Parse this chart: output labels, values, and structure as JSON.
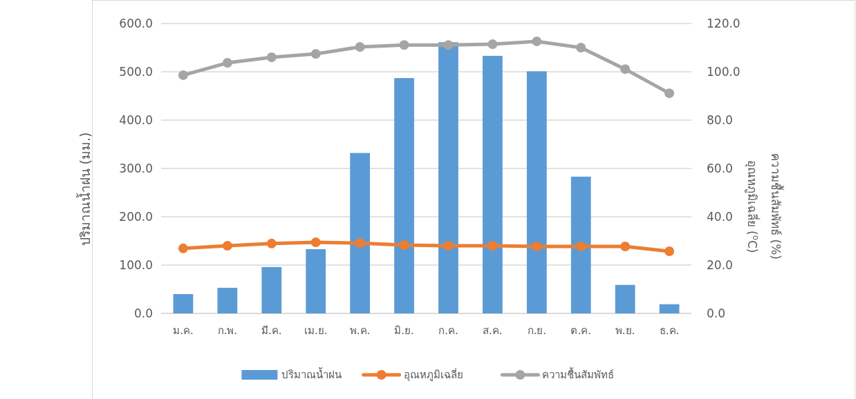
{
  "chart_data": {
    "type": "bar",
    "categories": [
      "ม.ค.",
      "ก.พ.",
      "มี.ค.",
      "เม.ย.",
      "พ.ค.",
      "มิ.ย.",
      "ก.ค.",
      "ส.ค.",
      "ก.ย.",
      "ต.ค.",
      "พ.ย.",
      "ธ.ค."
    ],
    "series": [
      {
        "name": "ปริมาณน้ำฝน",
        "color": "#5b9bd5",
        "values": [
          40,
          53,
          96,
          133,
          332,
          487,
          561,
          533,
          501,
          283,
          59,
          19
        ]
      },
      {
        "name": "อุณหภูมิเฉลี่ย",
        "type": "line",
        "axis": "y2",
        "color": "#ed7d31",
        "values": [
          26.9,
          28.0,
          28.9,
          29.4,
          29.1,
          28.3,
          28.0,
          28.0,
          27.7,
          27.7,
          27.7,
          25.7
        ]
      },
      {
        "name": "ความชื้นสัมพัทธ์",
        "type": "line",
        "axis": "y2",
        "color": "#a5a5a5",
        "values": [
          98.6,
          103.7,
          106.0,
          107.4,
          110.3,
          111.1,
          111.1,
          111.4,
          112.6,
          110.0,
          101.1,
          91.1
        ]
      }
    ],
    "ylabel": "ปริมาณน้ำฝน (มม.)",
    "y2label": "อุณหภูมิเฉลี่ย ($^{o}$C)\nความชื้นสัมพัทธ์ (%)",
    "ylim": [
      0,
      600
    ],
    "yticks": [
      {
        "value": 0,
        "label": "0.0"
      },
      {
        "value": 100,
        "label": "100.0"
      },
      {
        "value": 200,
        "label": "200.0"
      },
      {
        "value": 300,
        "label": "300.0"
      },
      {
        "value": 400,
        "label": "400.0"
      },
      {
        "value": 500,
        "label": "500.0"
      },
      {
        "value": 600,
        "label": "600.0"
      }
    ],
    "y2lim": [
      0,
      120
    ],
    "y2ticks": [
      {
        "value": 0,
        "label": "0.0"
      },
      {
        "value": 20,
        "label": "20.0"
      },
      {
        "value": 40,
        "label": "40.0"
      },
      {
        "value": 60,
        "label": "60.0"
      },
      {
        "value": 80,
        "label": "80.0"
      },
      {
        "value": 100,
        "label": "100.0"
      },
      {
        "value": 120,
        "label": "120.0"
      }
    ],
    "grid": "y",
    "legend": "bottom",
    "marker": "circle",
    "line_style": "solid"
  }
}
